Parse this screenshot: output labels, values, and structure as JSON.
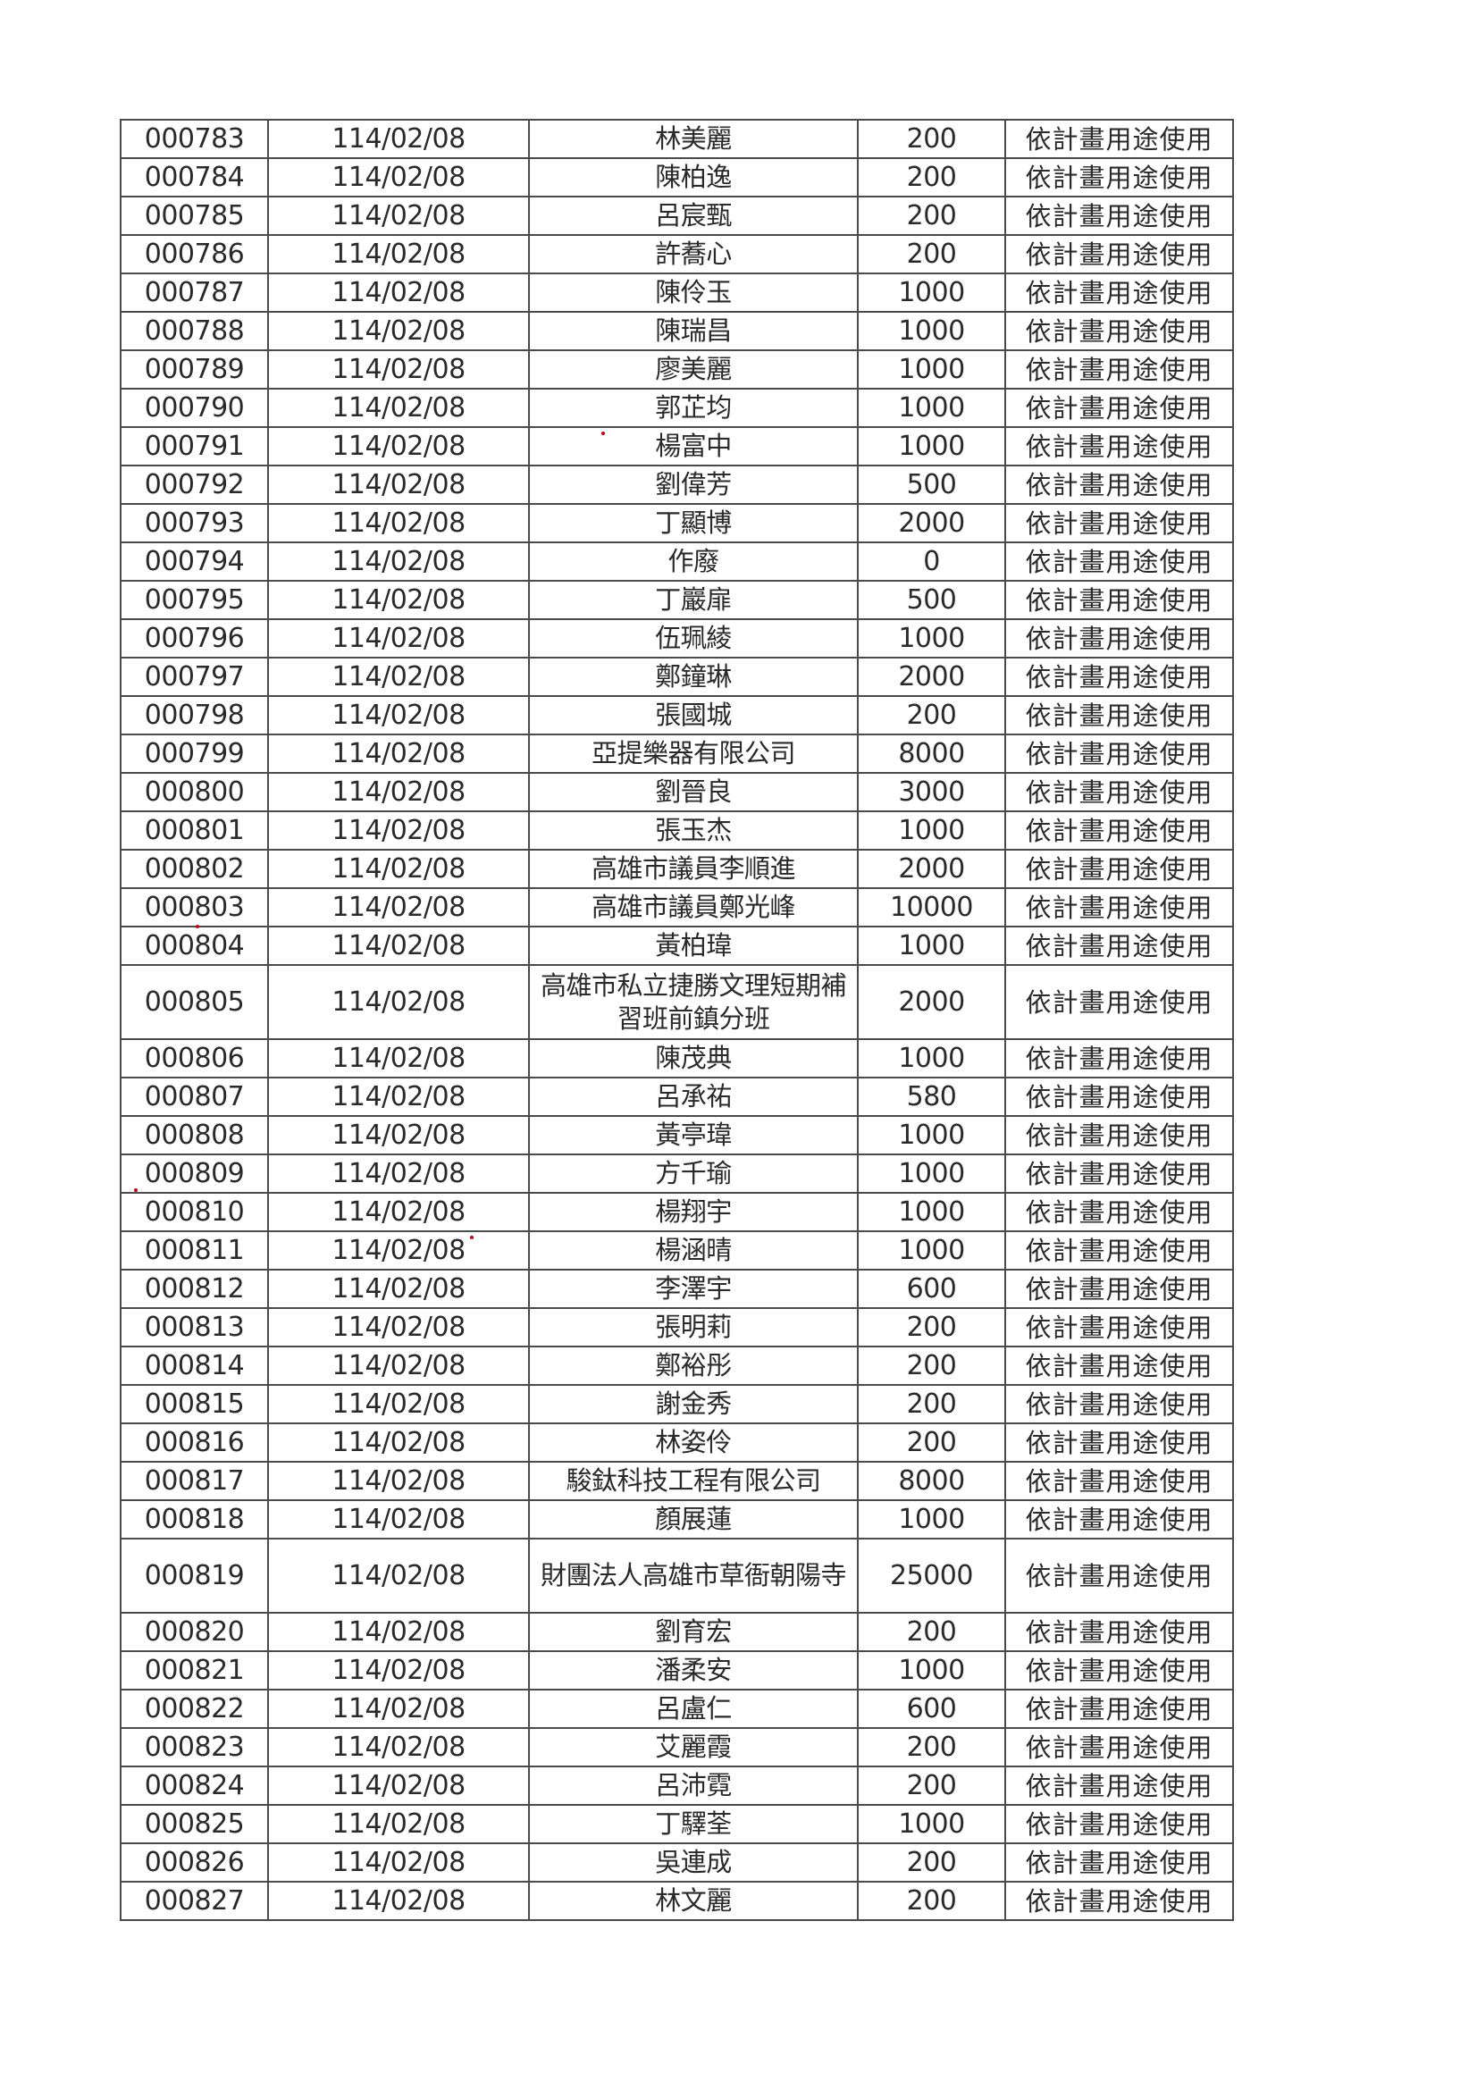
{
  "table": {
    "rows": [
      {
        "no": "000783",
        "date": "114/02/08",
        "name": "林美麗",
        "amount": "200",
        "use": "依計畫用途使用"
      },
      {
        "no": "000784",
        "date": "114/02/08",
        "name": "陳柏逸",
        "amount": "200",
        "use": "依計畫用途使用"
      },
      {
        "no": "000785",
        "date": "114/02/08",
        "name": "呂宸甄",
        "amount": "200",
        "use": "依計畫用途使用"
      },
      {
        "no": "000786",
        "date": "114/02/08",
        "name": "許蕎心",
        "amount": "200",
        "use": "依計畫用途使用"
      },
      {
        "no": "000787",
        "date": "114/02/08",
        "name": "陳伶玉",
        "amount": "1000",
        "use": "依計畫用途使用"
      },
      {
        "no": "000788",
        "date": "114/02/08",
        "name": "陳瑞昌",
        "amount": "1000",
        "use": "依計畫用途使用"
      },
      {
        "no": "000789",
        "date": "114/02/08",
        "name": "廖美麗",
        "amount": "1000",
        "use": "依計畫用途使用"
      },
      {
        "no": "000790",
        "date": "114/02/08",
        "name": "郭芷均",
        "amount": "1000",
        "use": "依計畫用途使用"
      },
      {
        "no": "000791",
        "date": "114/02/08",
        "name": "楊富中",
        "amount": "1000",
        "use": "依計畫用途使用"
      },
      {
        "no": "000792",
        "date": "114/02/08",
        "name": "劉偉芳",
        "amount": "500",
        "use": "依計畫用途使用"
      },
      {
        "no": "000793",
        "date": "114/02/08",
        "name": "丁顯博",
        "amount": "2000",
        "use": "依計畫用途使用"
      },
      {
        "no": "000794",
        "date": "114/02/08",
        "name": "作廢",
        "amount": "0",
        "use": "依計畫用途使用"
      },
      {
        "no": "000795",
        "date": "114/02/08",
        "name": "丁巖扉",
        "amount": "500",
        "use": "依計畫用途使用"
      },
      {
        "no": "000796",
        "date": "114/02/08",
        "name": "伍珮綾",
        "amount": "1000",
        "use": "依計畫用途使用"
      },
      {
        "no": "000797",
        "date": "114/02/08",
        "name": "鄭鐘琳",
        "amount": "2000",
        "use": "依計畫用途使用"
      },
      {
        "no": "000798",
        "date": "114/02/08",
        "name": "張國城",
        "amount": "200",
        "use": "依計畫用途使用"
      },
      {
        "no": "000799",
        "date": "114/02/08",
        "name": "亞提樂器有限公司",
        "amount": "8000",
        "use": "依計畫用途使用"
      },
      {
        "no": "000800",
        "date": "114/02/08",
        "name": "劉晉良",
        "amount": "3000",
        "use": "依計畫用途使用"
      },
      {
        "no": "000801",
        "date": "114/02/08",
        "name": "張玉杰",
        "amount": "1000",
        "use": "依計畫用途使用"
      },
      {
        "no": "000802",
        "date": "114/02/08",
        "name": "高雄市議員李順進",
        "amount": "2000",
        "use": "依計畫用途使用"
      },
      {
        "no": "000803",
        "date": "114/02/08",
        "name": "高雄市議員鄭光峰",
        "amount": "10000",
        "use": "依計畫用途使用"
      },
      {
        "no": "000804",
        "date": "114/02/08",
        "name": "黃柏瑋",
        "amount": "1000",
        "use": "依計畫用途使用"
      },
      {
        "no": "000805",
        "date": "114/02/08",
        "name": "高雄市私立捷勝文理短期補習班前鎮分班",
        "amount": "2000",
        "use": "依計畫用途使用"
      },
      {
        "no": "000806",
        "date": "114/02/08",
        "name": "陳茂典",
        "amount": "1000",
        "use": "依計畫用途使用"
      },
      {
        "no": "000807",
        "date": "114/02/08",
        "name": "呂承祐",
        "amount": "580",
        "use": "依計畫用途使用"
      },
      {
        "no": "000808",
        "date": "114/02/08",
        "name": "黃亭瑋",
        "amount": "1000",
        "use": "依計畫用途使用"
      },
      {
        "no": "000809",
        "date": "114/02/08",
        "name": "方千瑜",
        "amount": "1000",
        "use": "依計畫用途使用"
      },
      {
        "no": "000810",
        "date": "114/02/08",
        "name": "楊翔宇",
        "amount": "1000",
        "use": "依計畫用途使用"
      },
      {
        "no": "000811",
        "date": "114/02/08",
        "name": "楊涵晴",
        "amount": "1000",
        "use": "依計畫用途使用"
      },
      {
        "no": "000812",
        "date": "114/02/08",
        "name": "李澤宇",
        "amount": "600",
        "use": "依計畫用途使用"
      },
      {
        "no": "000813",
        "date": "114/02/08",
        "name": "張明莉",
        "amount": "200",
        "use": "依計畫用途使用"
      },
      {
        "no": "000814",
        "date": "114/02/08",
        "name": "鄭裕彤",
        "amount": "200",
        "use": "依計畫用途使用"
      },
      {
        "no": "000815",
        "date": "114/02/08",
        "name": "謝金秀",
        "amount": "200",
        "use": "依計畫用途使用"
      },
      {
        "no": "000816",
        "date": "114/02/08",
        "name": "林姿伶",
        "amount": "200",
        "use": "依計畫用途使用"
      },
      {
        "no": "000817",
        "date": "114/02/08",
        "name": "駿鈦科技工程有限公司",
        "amount": "8000",
        "use": "依計畫用途使用"
      },
      {
        "no": "000818",
        "date": "114/02/08",
        "name": "顏展蓮",
        "amount": "1000",
        "use": "依計畫用途使用"
      },
      {
        "no": "000819",
        "date": "114/02/08",
        "name": "財團法人高雄市草衙朝陽寺",
        "amount": "25000",
        "use": "依計畫用途使用"
      },
      {
        "no": "000820",
        "date": "114/02/08",
        "name": "劉育宏",
        "amount": "200",
        "use": "依計畫用途使用"
      },
      {
        "no": "000821",
        "date": "114/02/08",
        "name": "潘柔安",
        "amount": "1000",
        "use": "依計畫用途使用"
      },
      {
        "no": "000822",
        "date": "114/02/08",
        "name": "呂盧仁",
        "amount": "600",
        "use": "依計畫用途使用"
      },
      {
        "no": "000823",
        "date": "114/02/08",
        "name": "艾麗霞",
        "amount": "200",
        "use": "依計畫用途使用"
      },
      {
        "no": "000824",
        "date": "114/02/08",
        "name": "呂沛霓",
        "amount": "200",
        "use": "依計畫用途使用"
      },
      {
        "no": "000825",
        "date": "114/02/08",
        "name": "丁驛荃",
        "amount": "1000",
        "use": "依計畫用途使用"
      },
      {
        "no": "000826",
        "date": "114/02/08",
        "name": "吳連成",
        "amount": "200",
        "use": "依計畫用途使用"
      },
      {
        "no": "000827",
        "date": "114/02/08",
        "name": "林文麗",
        "amount": "200",
        "use": "依計畫用途使用"
      }
    ]
  }
}
